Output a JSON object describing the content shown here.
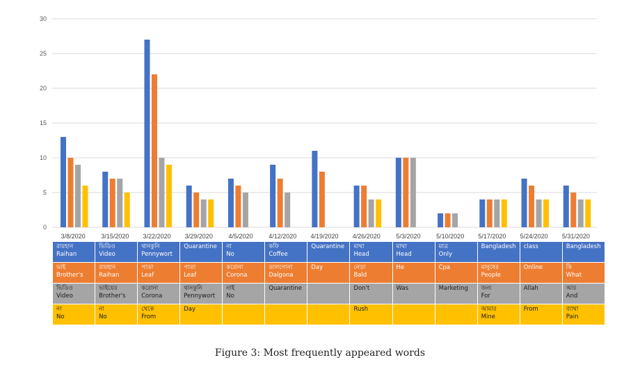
{
  "caption": "Figure 3: Most frequently appeared words",
  "colors": [
    "#4472c4",
    "#ed7d31",
    "#a5a5a5",
    "#ffc000"
  ],
  "chart_data": {
    "type": "bar",
    "categories": [
      "3/8/2020",
      "3/15/2020",
      "3/22/2020",
      "3/29/2020",
      "4/5/2020",
      "4/12/2020",
      "4/19/2020",
      "4/26/2020",
      "5/3/2020",
      "5/10/2020",
      "5/17/2020",
      "5/24/2020",
      "5/31/2020"
    ],
    "series": [
      {
        "values": [
          13,
          8,
          27,
          6,
          7,
          9,
          11,
          6,
          10,
          2,
          4,
          7,
          6
        ]
      },
      {
        "values": [
          10,
          7,
          22,
          5,
          6,
          7,
          8,
          6,
          10,
          2,
          4,
          6,
          5
        ]
      },
      {
        "values": [
          9,
          7,
          10,
          4,
          5,
          5,
          0,
          4,
          10,
          2,
          4,
          4,
          4
        ]
      },
      {
        "values": [
          6,
          5,
          9,
          4,
          0,
          0,
          0,
          4,
          0,
          0,
          4,
          4,
          4
        ]
      }
    ],
    "yticks": [
      "0",
      "5",
      "10",
      "15",
      "20",
      "25",
      "30"
    ],
    "ylim": [
      0,
      30
    ],
    "grid": true,
    "xlabel": "",
    "ylabel": ""
  },
  "table": {
    "rows": [
      [
        [
          "রায়হান",
          "Raihan"
        ],
        [
          "ভিডিও",
          "Video"
        ],
        [
          "থানকুনি",
          "Pennywort"
        ],
        [
          "Quarantine",
          ""
        ],
        [
          "না",
          "No"
        ],
        [
          "কফি",
          "Coffee"
        ],
        [
          "Quarantine",
          ""
        ],
        [
          "মাথা",
          "Head"
        ],
        [
          "মাথা",
          "Head"
        ],
        [
          "মাত্র",
          "Only"
        ],
        [
          "Bangladesh",
          ""
        ],
        [
          "class",
          ""
        ],
        [
          "Bangladesh",
          ""
        ]
      ],
      [
        [
          "ভাই",
          "Brother's"
        ],
        [
          "রায়হান",
          "Raihan"
        ],
        [
          "পাতা",
          "Leaf"
        ],
        [
          "পাতা",
          "Leaf"
        ],
        [
          "করোনা",
          "Corona"
        ],
        [
          "ডালগোনা",
          "Dalgona"
        ],
        [
          "Day",
          ""
        ],
        [
          "নেড়া",
          "Bald"
        ],
        [
          "He",
          ""
        ],
        [
          "Cpa",
          ""
        ],
        [
          "মানুষের",
          "People"
        ],
        [
          "Online",
          ""
        ],
        [
          "কি",
          "What"
        ]
      ],
      [
        [
          "ভিডিও",
          "Video"
        ],
        [
          "ভাইয়ের",
          "Brother's"
        ],
        [
          "করোনা",
          "Corona"
        ],
        [
          "থানকুনি",
          "Pennywort"
        ],
        [
          "নাই",
          "No"
        ],
        [
          "Quarantine",
          ""
        ],
        [
          "",
          ""
        ],
        [
          "Don't",
          ""
        ],
        [
          "Was",
          ""
        ],
        [
          "Marketing",
          ""
        ],
        [
          "জন্য",
          "For"
        ],
        [
          "Allah",
          ""
        ],
        [
          "আর",
          "And"
        ]
      ],
      [
        [
          "না",
          "No"
        ],
        [
          "না",
          "No"
        ],
        [
          "থেকে",
          "From"
        ],
        [
          "Day",
          ""
        ],
        [
          "",
          ""
        ],
        [
          "",
          ""
        ],
        [
          "",
          ""
        ],
        [
          "Rush",
          ""
        ],
        [
          "",
          ""
        ],
        [
          "",
          ""
        ],
        [
          "আমার",
          "Mine"
        ],
        [
          "From",
          ""
        ],
        [
          "ব্যাথা",
          "Pain"
        ]
      ]
    ]
  }
}
